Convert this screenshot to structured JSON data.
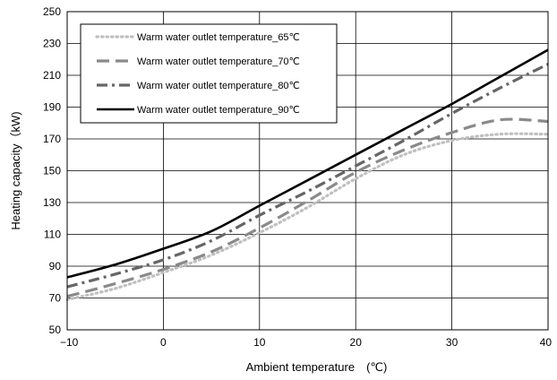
{
  "chart_data": {
    "type": "line",
    "title": "",
    "xlabel": "Ambient temperature　(℃)",
    "ylabel": "Heating capacity（kW)",
    "xlim": [
      -10,
      40
    ],
    "ylim": [
      50,
      250
    ],
    "xticks": [
      -10,
      0,
      10,
      20,
      30,
      40
    ],
    "yticks": [
      50,
      70,
      90,
      110,
      130,
      150,
      170,
      190,
      210,
      230,
      250
    ],
    "xtick_labels": [
      "−10",
      "0",
      "10",
      "20",
      "30",
      "40"
    ],
    "ytick_labels": [
      "50",
      "70",
      "90",
      "110",
      "130",
      "150",
      "170",
      "190",
      "210",
      "230",
      "250"
    ],
    "grid": true,
    "legend_position": "top-left",
    "series": [
      {
        "name": "Warm water outlet temperature_65℃",
        "color": "#c0c0c0",
        "style": "dotted",
        "x": [
          -10,
          -5,
          0,
          5,
          10,
          15,
          20,
          25,
          30,
          35,
          40
        ],
        "y": [
          69,
          76,
          86,
          97,
          111,
          127,
          145,
          160,
          169,
          173,
          173
        ]
      },
      {
        "name": "Warm water outlet temperature_70℃",
        "color": "#8a8a8a",
        "style": "dashed",
        "x": [
          -10,
          -5,
          0,
          5,
          10,
          15,
          20,
          25,
          30,
          35,
          40
        ],
        "y": [
          71,
          79,
          88,
          99,
          114,
          131,
          149,
          163,
          174,
          182,
          181
        ]
      },
      {
        "name": "Warm water outlet temperature_80℃",
        "color": "#666666",
        "style": "dashdot",
        "x": [
          -10,
          -5,
          0,
          5,
          10,
          15,
          20,
          25,
          30,
          35,
          40
        ],
        "y": [
          77,
          85,
          94,
          106,
          122,
          137,
          153,
          169,
          186,
          202,
          217
        ]
      },
      {
        "name": "Warm water outlet temperature_90℃",
        "color": "#000000",
        "style": "solid",
        "x": [
          -10,
          -5,
          0,
          5,
          10,
          15,
          20,
          25,
          30,
          35,
          40
        ],
        "y": [
          83,
          91,
          101,
          112,
          128,
          144,
          160,
          176,
          192,
          209,
          226
        ]
      }
    ]
  }
}
